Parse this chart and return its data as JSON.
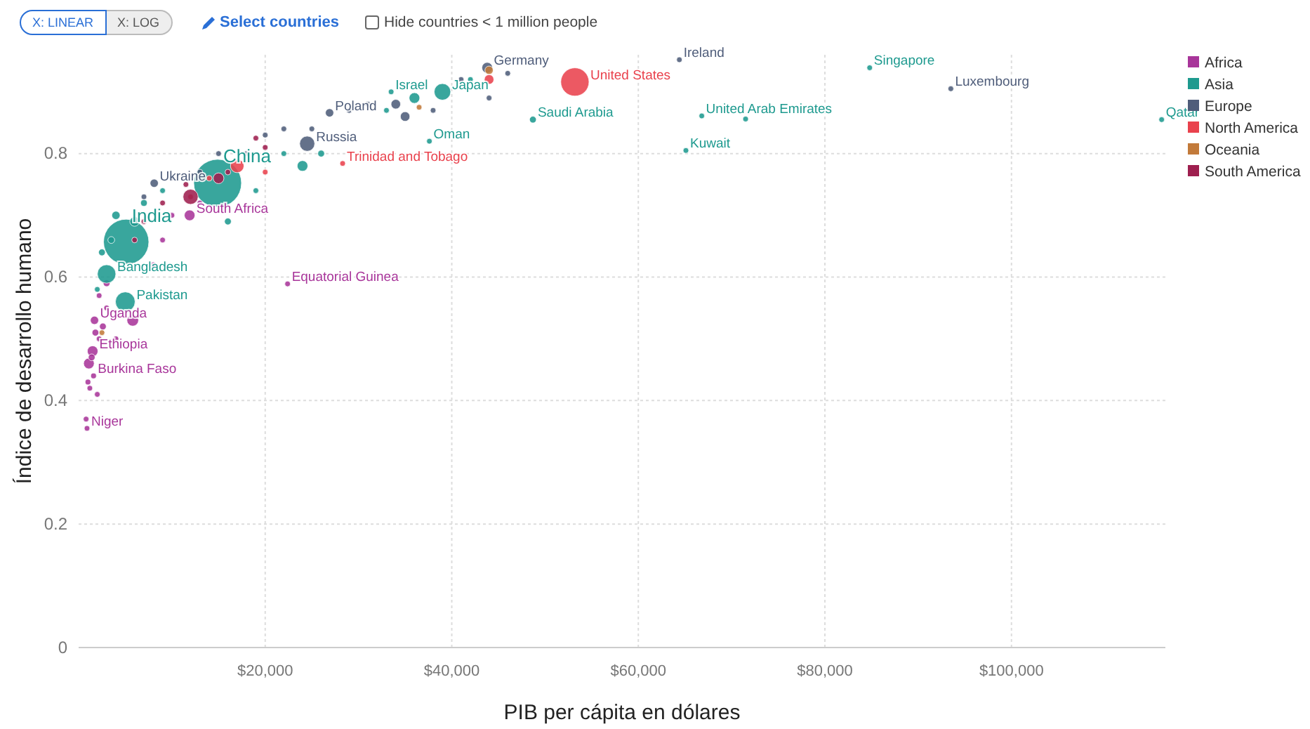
{
  "chart_data": {
    "type": "bubble",
    "xlabel": "PIB per cápita en dólares",
    "ylabel": "Índice de desarrollo humano",
    "annotations": [
      "X: LINEAR",
      "X: LOG",
      "Select countries",
      "Hide countries < 1 million people"
    ],
    "xlim": [
      0,
      116500
    ],
    "ylim": [
      0,
      0.96
    ],
    "xticks": [
      {
        "value": 20000,
        "label": "$20,000"
      },
      {
        "value": 40000,
        "label": "$40,000"
      },
      {
        "value": 60000,
        "label": "$60,000"
      },
      {
        "value": 80000,
        "label": "$80,000"
      },
      {
        "value": 100000,
        "label": "$100,000"
      }
    ],
    "yticks": [
      0,
      0.2,
      0.4,
      0.6,
      0.8
    ],
    "grid": true,
    "legend": "top right",
    "marker": "circle",
    "series": [
      {
        "name": "Africa",
        "color": "#a8359a",
        "x": [
          900,
          800,
          1600,
          1200,
          1000,
          2000,
          1500,
          1100,
          1400,
          2200,
          1800,
          1700,
          2600,
          3000,
          4000,
          2200,
          5800,
          3000,
          8000,
          10000,
          13000,
          9000,
          11900,
          22400
        ],
        "values": [
          0.355,
          0.37,
          0.44,
          0.42,
          0.43,
          0.41,
          0.48,
          0.46,
          0.47,
          0.5,
          0.51,
          0.53,
          0.52,
          0.55,
          0.5,
          0.57,
          0.53,
          0.59,
          0.62,
          0.7,
          0.72,
          0.66,
          0.7,
          0.589
        ],
        "sizes": [
          0.012,
          0.012,
          0.014,
          0.012,
          0.014,
          0.01,
          0.05,
          0.05,
          0.02,
          0.012,
          0.02,
          0.03,
          0.02,
          0.012,
          0.012,
          0.012,
          0.06,
          0.02,
          0.012,
          0.012,
          0.012,
          0.012,
          0.05,
          0.01
        ],
        "value_labels": [
          "Niger",
          null,
          "Burkina Faso",
          null,
          null,
          null,
          "Ethiopia",
          null,
          null,
          null,
          null,
          "Uganda",
          null,
          null,
          null,
          null,
          null,
          null,
          null,
          null,
          null,
          null,
          "South Africa",
          "Equatorial Guinea"
        ]
      },
      {
        "name": "Asia",
        "color": "#1e9a8f",
        "x": [
          5100,
          14900,
          5000,
          3000,
          2500,
          2000,
          3500,
          4000,
          6000,
          7000,
          9000,
          16000,
          19000,
          24000,
          26000,
          22000,
          33000,
          36000,
          42000,
          39000,
          33500,
          37600,
          48700,
          65100,
          66800,
          71500,
          84800,
          116100
        ],
        "values": [
          0.657,
          0.752,
          0.56,
          0.605,
          0.64,
          0.58,
          0.66,
          0.7,
          0.69,
          0.72,
          0.74,
          0.69,
          0.74,
          0.78,
          0.8,
          0.8,
          0.87,
          0.89,
          0.92,
          0.9,
          0.9,
          0.82,
          0.855,
          0.805,
          0.861,
          0.856,
          0.939,
          0.855
        ],
        "sizes": [
          0.9,
          1,
          0.17,
          0.15,
          0.02,
          0.012,
          0.02,
          0.03,
          0.04,
          0.02,
          0.012,
          0.02,
          0.012,
          0.05,
          0.02,
          0.012,
          0.012,
          0.05,
          0.012,
          0.12,
          0.012,
          0.01,
          0.02,
          0.01,
          0.01,
          0.01,
          0.01,
          0.01
        ],
        "value_labels": [
          "India",
          "China",
          "Pakistan",
          "Bangladesh",
          null,
          null,
          null,
          null,
          null,
          null,
          null,
          null,
          null,
          null,
          null,
          null,
          null,
          null,
          null,
          "Japan",
          "Israel",
          "Oman",
          "Saudi Arabia",
          "Kuwait",
          "United Arab Emirates",
          null,
          "Singapore",
          "Qatar"
        ]
      },
      {
        "name": "Europe",
        "color": "#4f5d7a",
        "x": [
          8100,
          7000,
          10000,
          13000,
          15000,
          18000,
          20000,
          22000,
          24500,
          25000,
          26900,
          29000,
          31000,
          34000,
          35000,
          38000,
          41000,
          44000,
          43800,
          46000,
          64400,
          93500
        ],
        "values": [
          0.752,
          0.73,
          0.76,
          0.77,
          0.8,
          0.8,
          0.83,
          0.84,
          0.816,
          0.84,
          0.866,
          0.87,
          0.88,
          0.88,
          0.86,
          0.87,
          0.92,
          0.89,
          0.939,
          0.93,
          0.952,
          0.905
        ],
        "sizes": [
          0.03,
          0.012,
          0.012,
          0.012,
          0.012,
          0.012,
          0.012,
          0.012,
          0.1,
          0.012,
          0.03,
          0.012,
          0.012,
          0.04,
          0.04,
          0.012,
          0.012,
          0.012,
          0.05,
          0.012,
          0.012,
          0.01
        ],
        "value_labels": [
          "Ukraine",
          null,
          null,
          null,
          null,
          null,
          null,
          null,
          "Russia",
          null,
          "Poland",
          null,
          null,
          null,
          null,
          null,
          null,
          null,
          "Germany",
          null,
          "Ireland",
          "Luxembourg"
        ]
      },
      {
        "name": "North America",
        "color": "#e9424d",
        "x": [
          53200,
          28300,
          17000,
          12000,
          20000,
          44000,
          14000
        ],
        "values": [
          0.916,
          0.784,
          0.78,
          0.73,
          0.77,
          0.92,
          0.76
        ],
        "sizes": [
          0.35,
          0.01,
          0.08,
          0.012,
          0.012,
          0.04,
          0.012
        ],
        "value_labels": [
          "United States",
          "Trinidad and Tobago",
          null,
          null,
          null,
          null,
          null
        ]
      },
      {
        "name": "Oceania",
        "color": "#c27a3a",
        "x": [
          44000,
          2500,
          36500
        ],
        "values": [
          0.935,
          0.51,
          0.875
        ],
        "sizes": [
          0.03,
          0.012,
          0.012
        ]
      },
      {
        "name": "South America",
        "color": "#9e1f4f",
        "x": [
          12000,
          15000,
          19000,
          20000,
          9000,
          6000,
          7000,
          16000,
          11500
        ],
        "values": [
          0.73,
          0.76,
          0.825,
          0.81,
          0.72,
          0.66,
          0.69,
          0.77,
          0.75
        ],
        "sizes": [
          0.1,
          0.05,
          0.012,
          0.012,
          0.012,
          0.012,
          0.012,
          0.012,
          0.012
        ]
      }
    ]
  }
}
